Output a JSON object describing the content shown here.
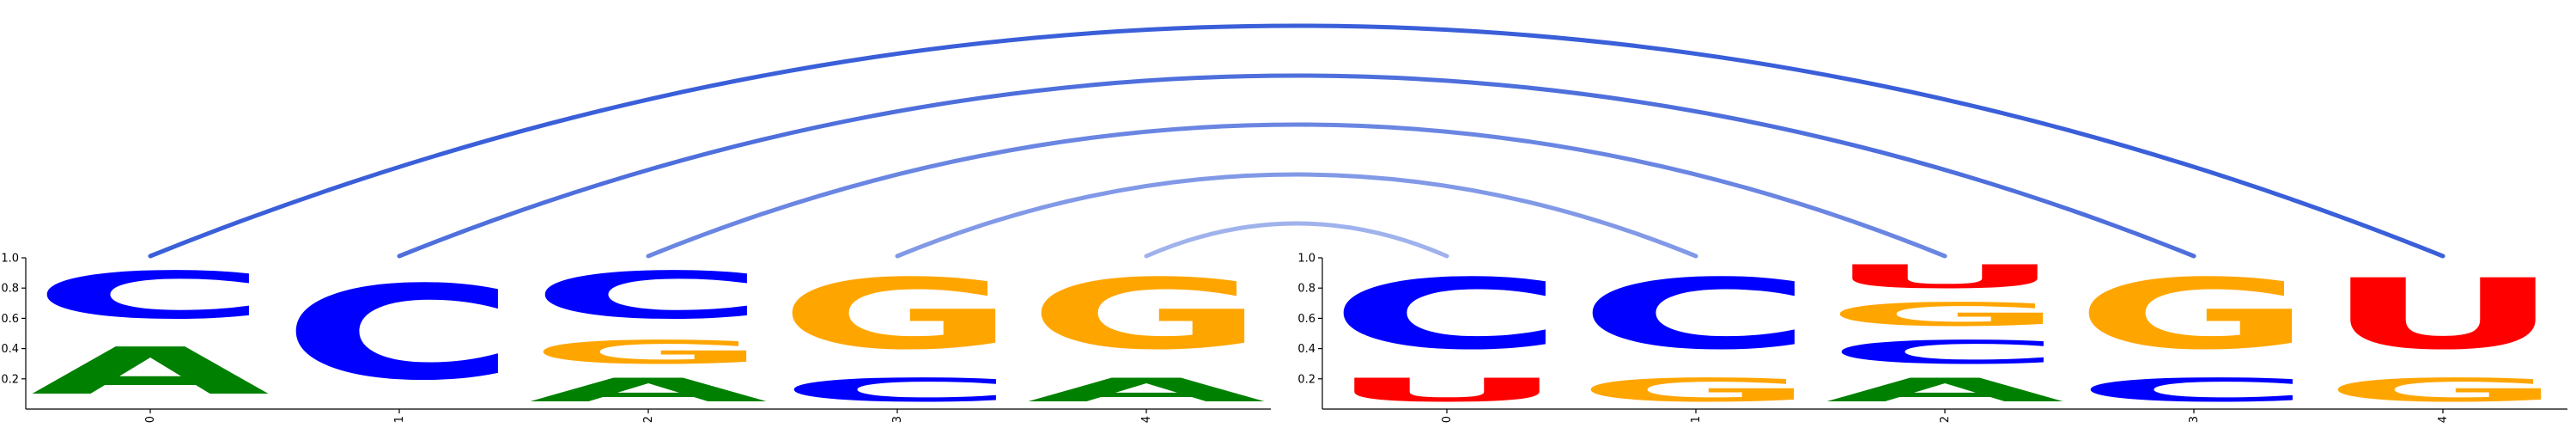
{
  "chart_data": {
    "type": "sequence-logo",
    "panels": [
      {
        "name": "left",
        "positions": [
          {
            "label": "0",
            "letters": [
              {
                "base": "A",
                "value": 0.5
              },
              {
                "base": "C",
                "value": 0.5
              }
            ]
          },
          {
            "label": "1",
            "letters": [
              {
                "base": "C",
                "value": 1.0
              }
            ]
          },
          {
            "label": "2",
            "letters": [
              {
                "base": "A",
                "value": 0.25
              },
              {
                "base": "G",
                "value": 0.25
              },
              {
                "base": "C",
                "value": 0.5
              }
            ]
          },
          {
            "label": "3",
            "letters": [
              {
                "base": "C",
                "value": 0.25
              },
              {
                "base": "G",
                "value": 0.75
              }
            ]
          },
          {
            "label": "4",
            "letters": [
              {
                "base": "A",
                "value": 0.25
              },
              {
                "base": "G",
                "value": 0.75
              }
            ]
          }
        ]
      },
      {
        "name": "right",
        "positions": [
          {
            "label": "0",
            "letters": [
              {
                "base": "U",
                "value": 0.25
              },
              {
                "base": "C",
                "value": 0.75
              }
            ]
          },
          {
            "label": "1",
            "letters": [
              {
                "base": "G",
                "value": 0.25
              },
              {
                "base": "C",
                "value": 0.75
              }
            ]
          },
          {
            "label": "2",
            "letters": [
              {
                "base": "A",
                "value": 0.25
              },
              {
                "base": "C",
                "value": 0.25
              },
              {
                "base": "G",
                "value": 0.25
              },
              {
                "base": "U",
                "value": 0.25
              }
            ]
          },
          {
            "label": "3",
            "letters": [
              {
                "base": "C",
                "value": 0.25
              },
              {
                "base": "G",
                "value": 0.75
              }
            ]
          },
          {
            "label": "4",
            "letters": [
              {
                "base": "G",
                "value": 0.25
              },
              {
                "base": "U",
                "value": 0.75
              }
            ]
          }
        ]
      }
    ],
    "ylim": [
      0,
      1
    ],
    "yticks": [
      "0.2",
      "0.4",
      "0.6",
      "0.8",
      "1.0"
    ],
    "base_colors": {
      "A": "#008000",
      "C": "#0000ff",
      "G": "#ffa500",
      "U": "#ff0000"
    },
    "pairings": [
      {
        "from": {
          "panel": "left",
          "position": "0"
        },
        "to": {
          "panel": "right",
          "position": "4"
        },
        "color": "#3a5fd9"
      },
      {
        "from": {
          "panel": "left",
          "position": "1"
        },
        "to": {
          "panel": "right",
          "position": "3"
        },
        "color": "#4e6fdc"
      },
      {
        "from": {
          "panel": "left",
          "position": "2"
        },
        "to": {
          "panel": "right",
          "position": "2"
        },
        "color": "#6a86e2"
      },
      {
        "from": {
          "panel": "left",
          "position": "3"
        },
        "to": {
          "panel": "right",
          "position": "1"
        },
        "color": "#8199e6"
      },
      {
        "from": {
          "panel": "left",
          "position": "4"
        },
        "to": {
          "panel": "right",
          "position": "0"
        },
        "color": "#9fb2ec"
      }
    ]
  }
}
